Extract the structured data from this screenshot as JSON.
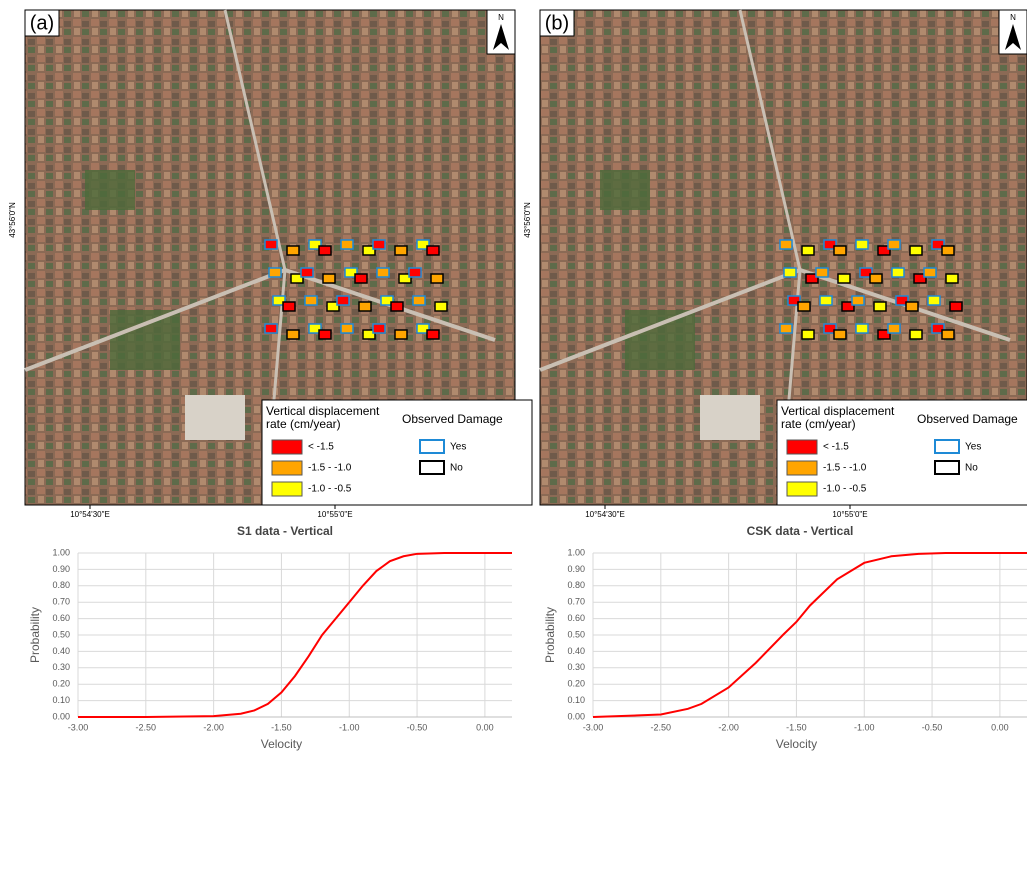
{
  "chart_data": [
    {
      "type": "line",
      "title": "S1 data - Vertical",
      "x_label": "Velocity",
      "y_label": "Probability",
      "color": "#ff0000",
      "grid": true,
      "x": [
        -3,
        -2.5,
        -2.0,
        -1.8,
        -1.7,
        -1.6,
        -1.5,
        -1.4,
        -1.3,
        -1.2,
        -1.1,
        -1.0,
        -0.9,
        -0.8,
        -0.7,
        -0.6,
        -0.5,
        -0.3,
        0.2
      ],
      "values": [
        0,
        0,
        0.005,
        0.02,
        0.04,
        0.08,
        0.15,
        0.25,
        0.37,
        0.5,
        0.6,
        0.7,
        0.8,
        0.89,
        0.95,
        0.98,
        0.995,
        1,
        1
      ],
      "xlim": [
        -3,
        0.2
      ],
      "ylim": [
        0,
        1
      ],
      "xticks": [
        {
          "value": -3,
          "label": "-3.00"
        },
        {
          "value": -2.5,
          "label": "-2.50"
        },
        {
          "value": -2,
          "label": "-2.00"
        },
        {
          "value": -1.5,
          "label": "-1.50"
        },
        {
          "value": -1,
          "label": "-1.00"
        },
        {
          "value": -0.5,
          "label": "-0.50"
        },
        {
          "value": 0,
          "label": "0.00"
        }
      ],
      "yticks": [
        {
          "value": 0,
          "label": "0.00"
        },
        {
          "value": 0.1,
          "label": "0.10"
        },
        {
          "value": 0.2,
          "label": "0.20"
        },
        {
          "value": 0.3,
          "label": "0.30"
        },
        {
          "value": 0.4,
          "label": "0.40"
        },
        {
          "value": 0.5,
          "label": "0.50"
        },
        {
          "value": 0.6,
          "label": "0.60"
        },
        {
          "value": 0.7,
          "label": "0.70"
        },
        {
          "value": 0.8,
          "label": "0.80"
        },
        {
          "value": 0.9,
          "label": "0.90"
        },
        {
          "value": 1,
          "label": "1.00"
        }
      ]
    },
    {
      "type": "line",
      "title": "CSK data - Vertical",
      "x_label": "Velocity",
      "y_label": "Probability",
      "color": "#ff0000",
      "grid": true,
      "x": [
        -3,
        -2.5,
        -2.3,
        -2.2,
        -2.0,
        -1.8,
        -1.6,
        -1.5,
        -1.4,
        -1.2,
        -1.0,
        -0.8,
        -0.6,
        -0.4,
        0.2
      ],
      "values": [
        0,
        0.015,
        0.05,
        0.08,
        0.18,
        0.33,
        0.5,
        0.58,
        0.68,
        0.84,
        0.94,
        0.98,
        0.995,
        1,
        1
      ],
      "xlim": [
        -3,
        0.2
      ],
      "ylim": [
        0,
        1
      ],
      "xticks": [
        {
          "value": -3,
          "label": "-3.00"
        },
        {
          "value": -2.5,
          "label": "-2.50"
        },
        {
          "value": -2,
          "label": "-2.00"
        },
        {
          "value": -1.5,
          "label": "-1.50"
        },
        {
          "value": -1,
          "label": "-1.00"
        },
        {
          "value": -0.5,
          "label": "-0.50"
        },
        {
          "value": 0,
          "label": "0.00"
        }
      ],
      "yticks": [
        {
          "value": 0,
          "label": "0.00"
        },
        {
          "value": 0.1,
          "label": "0.10"
        },
        {
          "value": 0.2,
          "label": "0.20"
        },
        {
          "value": 0.3,
          "label": "0.30"
        },
        {
          "value": 0.4,
          "label": "0.40"
        },
        {
          "value": 0.5,
          "label": "0.50"
        },
        {
          "value": 0.6,
          "label": "0.60"
        },
        {
          "value": 0.7,
          "label": "0.70"
        },
        {
          "value": 0.8,
          "label": "0.80"
        },
        {
          "value": 0.9,
          "label": "0.90"
        },
        {
          "value": 1,
          "label": "1.00"
        }
      ]
    }
  ],
  "maps": [
    {
      "panel": "(a)",
      "north": "N",
      "lat": "43°56'0\"N",
      "lon": [
        "10°54'30\"E",
        "10°55'0\"E"
      ],
      "legend_title": "Vertical displacement rate (cm/year)",
      "classes": [
        {
          "label": "< -1.5",
          "color": "#ff0000"
        },
        {
          "label": "-1.5 - -1.0",
          "color": "#ffa500"
        },
        {
          "label": "-1.0 - -0.5",
          "color": "#ffff00"
        }
      ],
      "damage_title": "Observed Damage",
      "damage": [
        {
          "label": "Yes",
          "color": "#1e8ad6"
        },
        {
          "label": "No",
          "color": "#000000"
        }
      ]
    },
    {
      "panel": "(b)",
      "north": "N",
      "lat": "43°56'0\"N",
      "lon": [
        "10°54'30\"E",
        "10°55'0\"E"
      ],
      "legend_title": "Vertical displacement rate (cm/year)",
      "classes": [
        {
          "label": "< -1.5",
          "color": "#ff0000"
        },
        {
          "label": "-1.5 - -1.0",
          "color": "#ffa500"
        },
        {
          "label": "-1.0 - -0.5",
          "color": "#ffff00"
        }
      ],
      "damage_title": "Observed Damage",
      "damage": [
        {
          "label": "Yes",
          "color": "#1e8ad6"
        },
        {
          "label": "No",
          "color": "#000000"
        }
      ]
    }
  ]
}
